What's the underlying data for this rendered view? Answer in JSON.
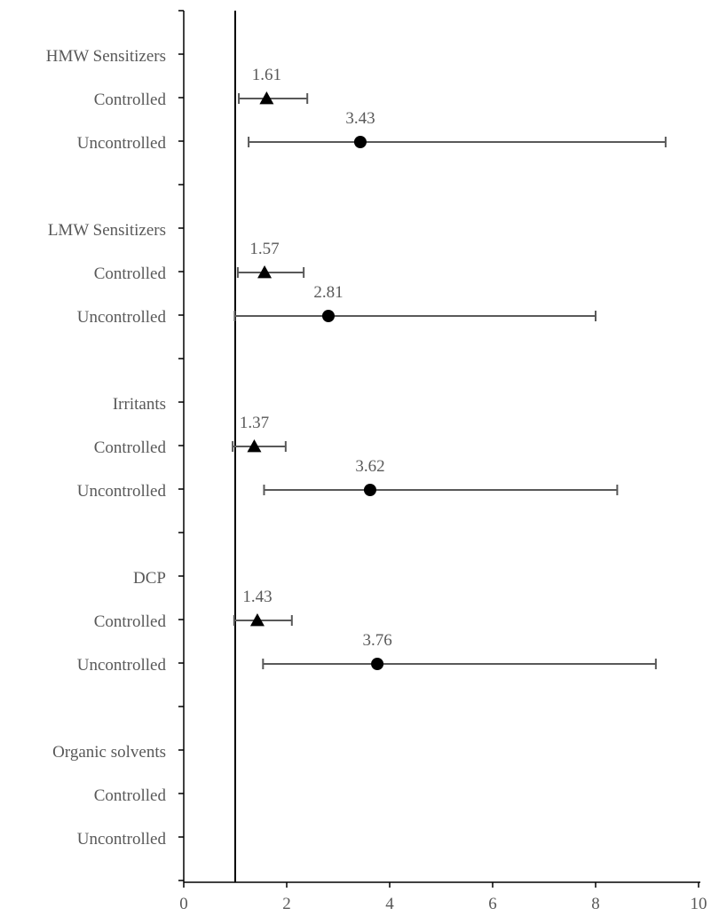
{
  "chart_data": {
    "type": "scatter",
    "title": "",
    "xlabel": "",
    "ylabel": "",
    "xlim": [
      0,
      10
    ],
    "xticks": [
      0,
      2,
      4,
      6,
      8,
      10
    ],
    "reference_line_x": 1,
    "grid": false,
    "legend": "none",
    "categories": [
      "HMW Sensitizers",
      "Controlled",
      "Uncontrolled",
      "",
      "LMW Sensitizers",
      "Controlled",
      "Uncontrolled",
      "",
      "Irritants",
      "Controlled",
      "Uncontrolled",
      "",
      "DCP",
      "Controlled",
      "Uncontrolled",
      "",
      "Organic solvents",
      "Controlled",
      "Uncontrolled"
    ],
    "points": [
      {
        "row": 1,
        "group": "HMW Sensitizers",
        "exposure": "Controlled",
        "marker": "triangle",
        "value": 1.61,
        "label": "1.61",
        "ci_low": 1.07,
        "ci_high": 2.4
      },
      {
        "row": 2,
        "group": "HMW Sensitizers",
        "exposure": "Uncontrolled",
        "marker": "circle",
        "value": 3.43,
        "label": "3.43",
        "ci_low": 1.26,
        "ci_high": 9.36
      },
      {
        "row": 5,
        "group": "LMW Sensitizers",
        "exposure": "Controlled",
        "marker": "triangle",
        "value": 1.57,
        "label": "1.57",
        "ci_low": 1.05,
        "ci_high": 2.33
      },
      {
        "row": 6,
        "group": "LMW Sensitizers",
        "exposure": "Uncontrolled",
        "marker": "circle",
        "value": 2.81,
        "label": "2.81",
        "ci_low": 0.99,
        "ci_high": 8.0
      },
      {
        "row": 9,
        "group": "Irritants",
        "exposure": "Controlled",
        "marker": "triangle",
        "value": 1.37,
        "label": "1.37",
        "ci_low": 0.95,
        "ci_high": 1.98
      },
      {
        "row": 10,
        "group": "Irritants",
        "exposure": "Uncontrolled",
        "marker": "circle",
        "value": 3.62,
        "label": "3.62",
        "ci_low": 1.56,
        "ci_high": 8.42
      },
      {
        "row": 13,
        "group": "DCP",
        "exposure": "Controlled",
        "marker": "triangle",
        "value": 1.43,
        "label": "1.43",
        "ci_low": 0.98,
        "ci_high": 2.1
      },
      {
        "row": 14,
        "group": "DCP",
        "exposure": "Uncontrolled",
        "marker": "circle",
        "value": 3.76,
        "label": "3.76",
        "ci_low": 1.54,
        "ci_high": 9.17
      }
    ],
    "colors": {
      "marker": "#000000",
      "error_bar": "#595959",
      "axis": "#000000",
      "text": "#595959"
    }
  }
}
